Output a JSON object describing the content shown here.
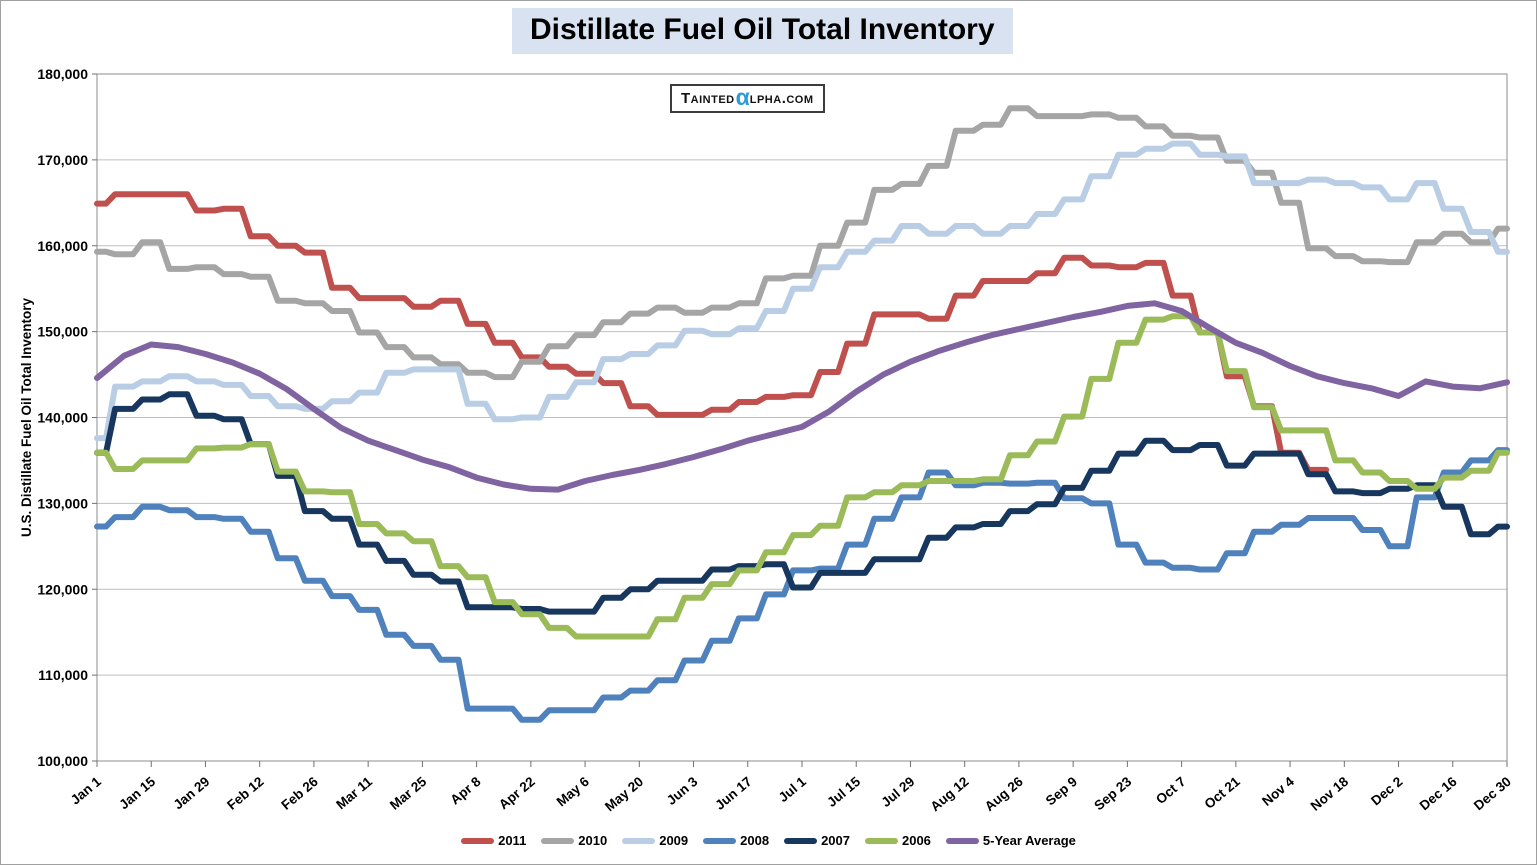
{
  "title": "Distillate Fuel Oil Total Inventory",
  "logo": {
    "prefix": "Tainted",
    "alpha": "α",
    "suffix": "lpha.com"
  },
  "y_axis": {
    "title": "U.S. Distillate Fuel Oil Total Inventory",
    "tick_labels": [
      "100,000",
      "110,000",
      "120,000",
      "130,000",
      "140,000",
      "150,000",
      "160,000",
      "170,000",
      "180,000"
    ]
  },
  "x_axis": {
    "tick_labels": [
      "Jan 1",
      "Jan 15",
      "Jan 29",
      "Feb 12",
      "Feb 26",
      "Mar 11",
      "Mar 25",
      "Apr 8",
      "Apr 22",
      "May 6",
      "May 20",
      "Jun 3",
      "Jun 17",
      "Jul 1",
      "Jul 15",
      "Jul 29",
      "Aug 12",
      "Aug 26",
      "Sep 9",
      "Sep 23",
      "Oct 7",
      "Oct 21",
      "Nov 4",
      "Nov 18",
      "Dec 2",
      "Dec 16",
      "Dec 30"
    ]
  },
  "chart_data": {
    "type": "line",
    "title": "Distillate Fuel Oil Total Inventory",
    "ylabel": "U.S. Distillate Fuel Oil Total Inventory",
    "ylim": [
      100000,
      180000
    ],
    "y_tick_step": 10000,
    "grid": true,
    "legend_position": "bottom",
    "x_unit": "weekly (53 points per series, Jan 1 - Dec 30)",
    "x_tick_labels": [
      "Jan 1",
      "Jan 15",
      "Jan 29",
      "Feb 12",
      "Feb 26",
      "Mar 11",
      "Mar 25",
      "Apr 8",
      "Apr 22",
      "May 6",
      "May 20",
      "Jun 3",
      "Jun 17",
      "Jul 1",
      "Jul 15",
      "Jul 29",
      "Aug 12",
      "Aug 26",
      "Sep 9",
      "Sep 23",
      "Oct 7",
      "Oct 21",
      "Nov 4",
      "Nov 18",
      "Dec 2",
      "Dec 16",
      "Dec 30"
    ],
    "series": [
      {
        "name": "2011",
        "color": "#c0504d",
        "style": "step",
        "values": [
          164900,
          166000,
          166000,
          166000,
          164100,
          164300,
          161100,
          160000,
          159200,
          155100,
          153900,
          153900,
          152900,
          153600,
          150900,
          148700,
          147000,
          145900,
          145100,
          144000,
          141300,
          140300,
          140300,
          140900,
          141800,
          142400,
          142600,
          145300,
          148600,
          152000,
          152000,
          151500,
          154200,
          155900,
          155900,
          156800,
          158600,
          157700,
          157500,
          158000,
          154200,
          149900,
          144800,
          141300,
          135900,
          133900
        ]
      },
      {
        "name": "2010",
        "color": "#a5a5a5",
        "style": "step",
        "values": [
          159300,
          159000,
          160400,
          157300,
          157500,
          156700,
          156400,
          153600,
          153300,
          152400,
          149900,
          148200,
          147000,
          146200,
          145200,
          144700,
          146500,
          148300,
          149600,
          151100,
          152100,
          152800,
          152200,
          152800,
          153300,
          156200,
          156500,
          160000,
          162700,
          166500,
          167200,
          169300,
          173400,
          174100,
          176000,
          175100,
          175100,
          175300,
          174900,
          173900,
          172800,
          172600,
          169900,
          168500,
          165000,
          159700,
          158800,
          158200,
          158100,
          160400,
          161400,
          160400,
          162000
        ]
      },
      {
        "name": "2009",
        "color": "#b9cde5",
        "style": "step",
        "values": [
          137600,
          143600,
          144200,
          144800,
          144200,
          143800,
          142500,
          141300,
          141000,
          141900,
          142900,
          145200,
          145600,
          145600,
          141600,
          139800,
          140000,
          142400,
          144100,
          146800,
          147400,
          148400,
          150100,
          149700,
          150400,
          152400,
          155000,
          157500,
          159300,
          160600,
          162300,
          161400,
          162300,
          161400,
          162300,
          163700,
          165400,
          168100,
          170600,
          171300,
          171900,
          170600,
          170400,
          167300,
          167300,
          167700,
          167300,
          166800,
          165400,
          167300,
          164300,
          161600,
          159300
        ]
      },
      {
        "name": "2008",
        "color": "#4f81bd",
        "style": "step",
        "values": [
          127300,
          128400,
          129600,
          129200,
          128400,
          128200,
          126700,
          123600,
          121000,
          119200,
          117600,
          114700,
          113400,
          111800,
          106100,
          106100,
          104800,
          105900,
          105900,
          107400,
          108200,
          109400,
          111700,
          114000,
          116600,
          119400,
          122200,
          122400,
          125200,
          128200,
          130700,
          133600,
          132100,
          132400,
          132300,
          132400,
          130600,
          130000,
          125200,
          123100,
          122500,
          122300,
          124200,
          126700,
          127500,
          128300,
          128300,
          126900,
          125000,
          130700,
          133600,
          135000,
          136200
        ]
      },
      {
        "name": "2007",
        "color": "#17375e",
        "style": "step",
        "values": [
          135900,
          141000,
          142100,
          142700,
          140200,
          139800,
          136900,
          133200,
          129100,
          128200,
          125200,
          123300,
          121700,
          120900,
          117900,
          117900,
          117700,
          117400,
          117400,
          119000,
          120000,
          121000,
          121000,
          122300,
          122700,
          122900,
          120200,
          121900,
          121900,
          123500,
          123500,
          126000,
          127200,
          127600,
          129100,
          129900,
          131800,
          133800,
          135800,
          137300,
          136200,
          136800,
          134400,
          135800,
          135800,
          133400,
          131400,
          131200,
          131700,
          132100,
          129600,
          126400,
          127300
        ]
      },
      {
        "name": "2006",
        "color": "#9bbb59",
        "style": "step",
        "values": [
          135900,
          134000,
          135000,
          135000,
          136400,
          136500,
          136900,
          133700,
          131400,
          131300,
          127600,
          126500,
          125600,
          122700,
          121400,
          118500,
          117100,
          115500,
          114500,
          114500,
          114500,
          116500,
          119000,
          120600,
          122200,
          124300,
          126300,
          127400,
          130700,
          131300,
          132100,
          132600,
          132600,
          132800,
          135600,
          137200,
          140100,
          144500,
          148700,
          151400,
          151800,
          149900,
          145400,
          141200,
          138500,
          138500,
          135000,
          133600,
          132600,
          131700,
          133000,
          133800,
          135900
        ]
      },
      {
        "name": "5-Year Average",
        "color": "#8064a2",
        "style": "smooth",
        "values": [
          144600,
          147200,
          148500,
          148200,
          147400,
          146400,
          145100,
          143300,
          141000,
          138800,
          137300,
          136200,
          135100,
          134200,
          133000,
          132200,
          131700,
          131600,
          132600,
          133300,
          133900,
          134600,
          135400,
          136300,
          137300,
          138100,
          138900,
          140700,
          143000,
          145000,
          146500,
          147700,
          148700,
          149600,
          150300,
          151000,
          151700,
          152300,
          153000,
          153300,
          152400,
          150500,
          148700,
          147500,
          146000,
          144800,
          144000,
          143400,
          142500,
          144200,
          143600,
          143400,
          144100
        ]
      }
    ]
  }
}
